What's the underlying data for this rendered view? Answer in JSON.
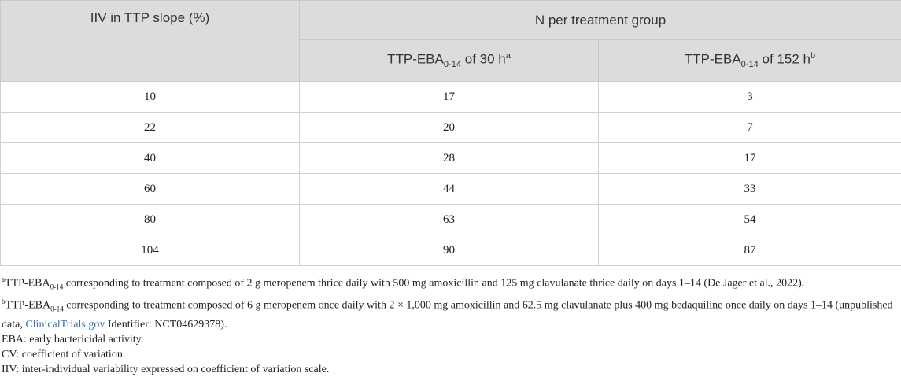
{
  "table": {
    "header": {
      "col1": "IIV in TTP slope (%)",
      "group": "N per treatment group",
      "sub": [
        {
          "base": "TTP-EBA",
          "sub": "0-14",
          "text": " of 30 h",
          "sup": "a"
        },
        {
          "base": "TTP-EBA",
          "sub": "0-14",
          "text": " of 152 h",
          "sup": "b"
        }
      ]
    },
    "rows": [
      [
        10,
        17,
        3
      ],
      [
        22,
        20,
        7
      ],
      [
        40,
        28,
        17
      ],
      [
        60,
        44,
        33
      ],
      [
        80,
        63,
        54
      ],
      [
        104,
        90,
        87
      ]
    ]
  },
  "footnotes": [
    {
      "sup": "a",
      "base": "TTP-EBA",
      "sub": "0-14",
      "text": " corresponding to treatment composed of 2 g meropenem thrice daily with 500 mg amoxicillin and 125 mg clavulanate thrice daily on days 1–14 (De Jager et al., 2022)."
    },
    {
      "sup": "b",
      "base": "TTP-EBA",
      "sub": "0-14",
      "text": " corresponding to treatment composed of 6 g meropenem once daily with 2 × 1,000 mg amoxicillin and 62.5 mg clavulanate plus 400 mg bedaquiline once daily on days 1–14 (unpublished data, ",
      "link": "ClinicalTrials.gov",
      "after": " Identifier: NCT04629378)."
    },
    {
      "text": "EBA: early bactericidal activity."
    },
    {
      "text": "CV: coefficient of variation."
    },
    {
      "text": "IIV: inter-individual variability expressed on coefficient of variation scale."
    }
  ]
}
